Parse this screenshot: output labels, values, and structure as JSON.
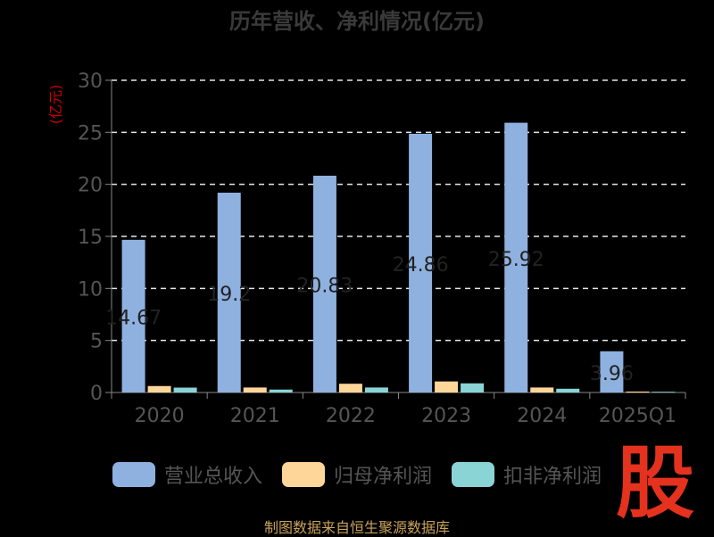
{
  "chart_data": {
    "type": "bar",
    "title": "历年营收、净利情况(亿元)",
    "ylabel": "(亿元)",
    "categories": [
      "2020",
      "2021",
      "2022",
      "2023",
      "2024",
      "2025Q1"
    ],
    "ylim": [
      0,
      30
    ],
    "yticks": [
      0,
      5,
      10,
      15,
      20,
      25,
      30
    ],
    "grid": true,
    "legend_position": "bottom",
    "series": [
      {
        "name": "营业总收入",
        "values": [
          14.67,
          19.2,
          20.83,
          24.86,
          25.92,
          3.96
        ],
        "color": "#8fb1e0"
      },
      {
        "name": "归母净利润",
        "values": [
          0.62,
          0.48,
          0.84,
          1.06,
          0.48,
          0.09
        ],
        "color": "#ffd699"
      },
      {
        "name": "扣非净利润",
        "values": [
          0.47,
          0.28,
          0.48,
          0.88,
          0.36,
          0.07
        ],
        "color": "#8ad4d6"
      }
    ],
    "data_labels": [
      "14.67",
      "19.2",
      "20.83",
      "24.86",
      "25.92",
      "3.96"
    ]
  },
  "source": "制图数据来自恒生聚源数据库",
  "logo_text": "股",
  "colors": {
    "grid": "#e8e8e8",
    "axis": "#888888",
    "tick_text": "#555555",
    "ylabel": "#cc0000",
    "data_label": "#222222"
  }
}
